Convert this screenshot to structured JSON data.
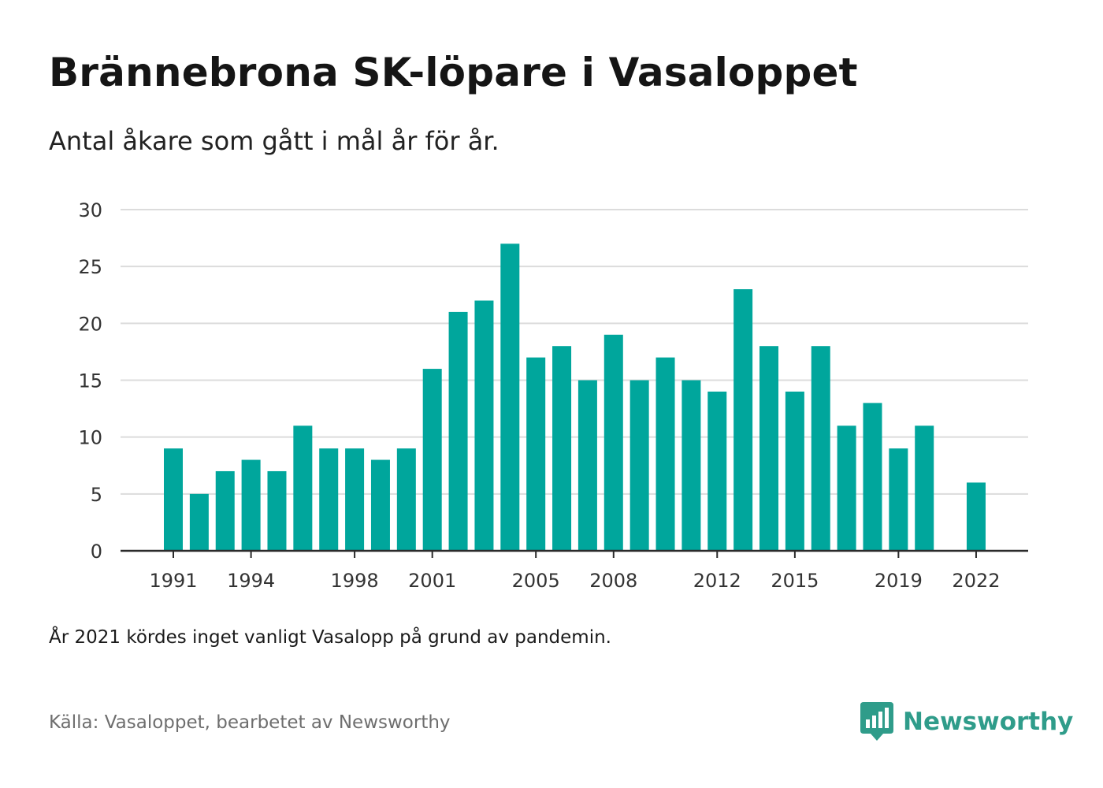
{
  "header": {
    "title": "Brännebrona SK-löpare i Vasaloppet",
    "subtitle": "Antal åkare som gått i mål år för år."
  },
  "chart_data": {
    "type": "bar",
    "categories": [
      "1991",
      "1992",
      "1993",
      "1994",
      "1995",
      "1996",
      "1997",
      "1998",
      "1999",
      "2000",
      "2001",
      "2002",
      "2003",
      "2004",
      "2005",
      "2006",
      "2007",
      "2008",
      "2009",
      "2010",
      "2011",
      "2012",
      "2013",
      "2014",
      "2015",
      "2016",
      "2017",
      "2018",
      "2019",
      "2020",
      "2021",
      "2022"
    ],
    "values": [
      9,
      5,
      7,
      8,
      7,
      11,
      9,
      9,
      8,
      9,
      16,
      21,
      22,
      27,
      17,
      18,
      15,
      19,
      15,
      17,
      15,
      14,
      23,
      18,
      14,
      18,
      11,
      13,
      9,
      11,
      null,
      6
    ],
    "x_tick_labels": [
      "1991",
      "1994",
      "1998",
      "2001",
      "2005",
      "2008",
      "2012",
      "2015",
      "2019",
      "2022"
    ],
    "y_ticks": [
      0,
      5,
      10,
      15,
      20,
      25,
      30
    ],
    "ylim": [
      0,
      30
    ],
    "title": "Brännebrona SK-löpare i Vasaloppet",
    "subtitle": "Antal åkare som gått i mål år för år.",
    "xlabel": "",
    "ylabel": "",
    "grid": true,
    "bar_color": "#00a69c"
  },
  "footer": {
    "note": "År 2021 kördes inget vanligt Vasalopp på grund av pandemin.",
    "source": "Källa: Vasaloppet, bearbetet av Newsworthy",
    "brand": "Newsworthy",
    "brand_icon": "newsworthy-logo-icon",
    "brand_color": "#2f9c8a"
  }
}
